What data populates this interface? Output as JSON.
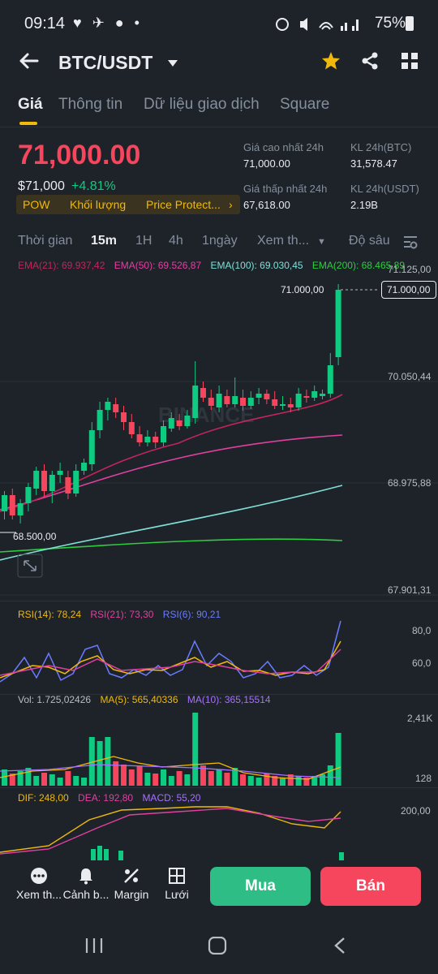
{
  "status": {
    "time": "09:14",
    "icons": "♥ ✈ ● •",
    "battery": "75%"
  },
  "header": {
    "title": "BTC/USDT",
    "dropdown_icon": "caret-down-icon",
    "star_color": "#f0b90b"
  },
  "tabs": [
    {
      "label": "Giá"
    },
    {
      "label": "Thông tin"
    },
    {
      "label": "Dữ liệu giao dịch"
    },
    {
      "label": "Square"
    }
  ],
  "price": {
    "last": "71,000.00",
    "usd": "$71,000",
    "change": "+4.81%",
    "tags": [
      "POW",
      "Khối lượng",
      "Price Protect..."
    ]
  },
  "stats": {
    "high_label": "Giá cao nhất 24h",
    "high": "71,000.00",
    "low_label": "Giá thấp nhất 24h",
    "low": "67,618.00",
    "vol_btc_label": "KL 24h(BTC)",
    "vol_btc": "31,578.47",
    "vol_usdt_label": "KL 24h(USDT)",
    "vol_usdt": "2.19B"
  },
  "timeframes": [
    "Thời gian",
    "15m",
    "1H",
    "4h",
    "1ngày",
    "Xem th...",
    "Độ sâu"
  ],
  "chart": {
    "ema21": "EMA(21): 69.937,42",
    "ema50": "EMA(50): 69.526,87",
    "ema100": "EMA(100): 69.030,45",
    "ema200": "EMA(200): 68.465,89",
    "y_labels": [
      "71.125,00",
      "70.050,44",
      "68.975,88",
      "67.901,31"
    ],
    "last_price_tag": "71.000,00",
    "high_marker": "71.000,00",
    "low_marker": "68.500,00",
    "watermark": "BINANCE",
    "colors": {
      "up": "#0ecb81",
      "down": "#f6465d",
      "ema21": "#c2255c",
      "ema50": "#e040a0",
      "ema100": "#7fe0d8",
      "ema200": "#2ecc40"
    }
  },
  "rsi": {
    "rsi14": "RSI(14): 78,24",
    "rsi21": "RSI(21): 73,30",
    "rsi6": "RSI(6): 90,21",
    "levels": [
      "80,0",
      "60,0"
    ]
  },
  "volume": {
    "vol": "Vol: 1.725,02426",
    "ma5": "MA(5): 565,40336",
    "ma10": "MA(10): 365,15514",
    "levels": [
      "2,41K",
      "128"
    ]
  },
  "macd": {
    "dif": "DIF: 248,00",
    "dea": "DEA: 192,80",
    "macd": "MACD: 55,20",
    "level": "200,00"
  },
  "bottom": {
    "items": [
      "Xem th...",
      "Cảnh b...",
      "Margin",
      "Lưới"
    ],
    "buy": "Mua",
    "sell": "Bán"
  }
}
